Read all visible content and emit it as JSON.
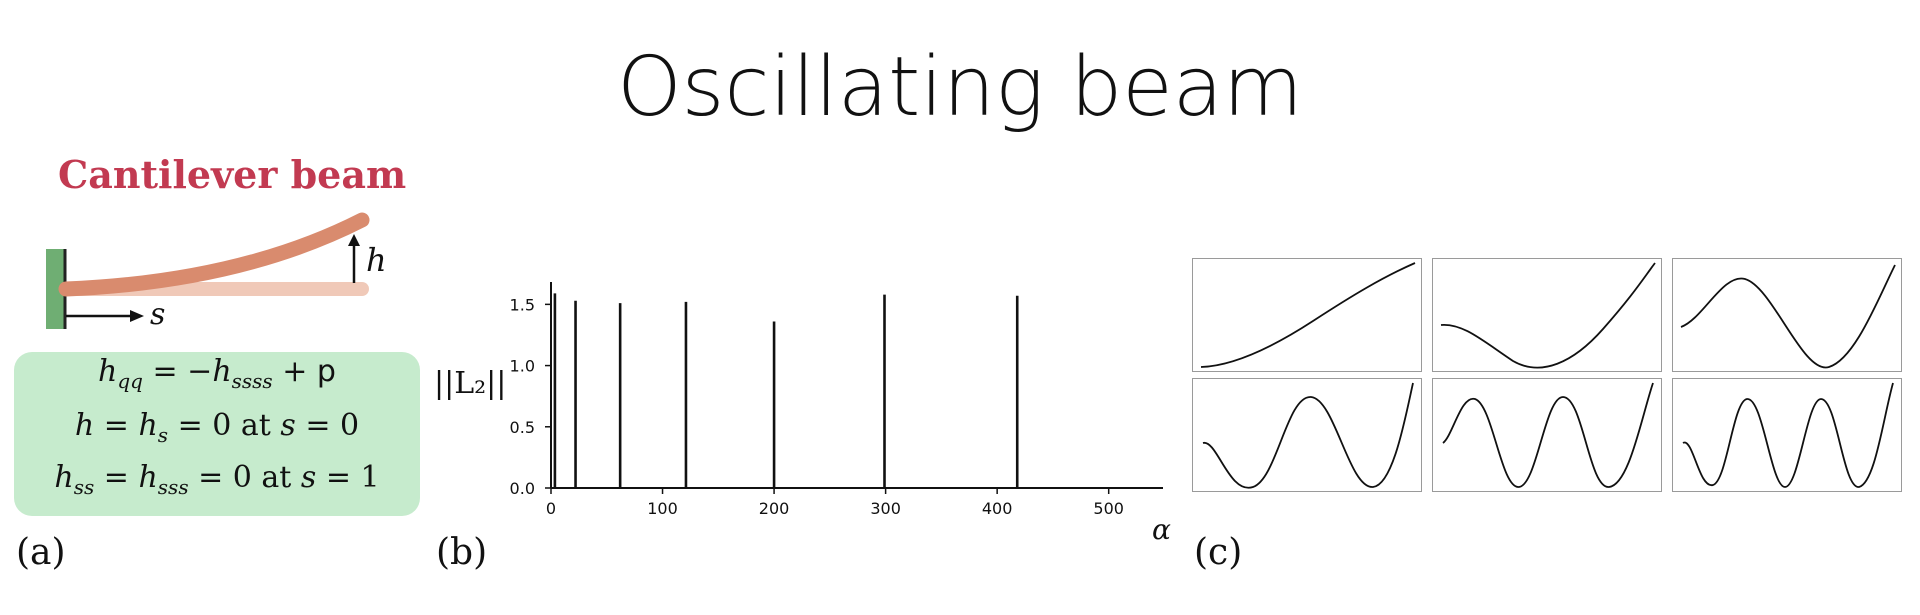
{
  "title": "Oscillating beam",
  "panel_a": {
    "heading": "Cantilever beam",
    "label_h": "h",
    "label_s": "s",
    "equations": [
      "h_qq = −h_ssss + p",
      "h = h_s = 0 at s = 0",
      "h_ss = h_sss = 0 at s = 1"
    ],
    "panel_label": "(a)",
    "colors": {
      "heading": "#c23a51",
      "beam": "#d98b6e",
      "beam_rest": "#f0c9b8",
      "wall": "#6fae73",
      "box": "#c6ebcd"
    }
  },
  "panel_b": {
    "panel_label": "(b)",
    "ylabel": "||L₂||",
    "xlabel": "α"
  },
  "panel_c": {
    "panel_label": "(c)",
    "modes": [
      "mode-1",
      "mode-2",
      "mode-3",
      "mode-4",
      "mode-5",
      "mode-6"
    ]
  },
  "chart_data": {
    "type": "bar",
    "xlabel": "α",
    "ylabel": "||L₂||",
    "xlim": [
      0,
      520
    ],
    "ylim": [
      0,
      1.65
    ],
    "xticks": [
      0,
      100,
      200,
      300,
      400,
      500
    ],
    "yticks": [
      0.0,
      0.5,
      1.0,
      1.5
    ],
    "ytick_labels": [
      "0.0",
      "0.5",
      "1.0",
      "1.5"
    ],
    "x": [
      3.5,
      22,
      62,
      121,
      200,
      299,
      418
    ],
    "values": [
      1.59,
      1.53,
      1.51,
      1.52,
      1.36,
      1.58,
      1.57
    ],
    "grid": false
  }
}
